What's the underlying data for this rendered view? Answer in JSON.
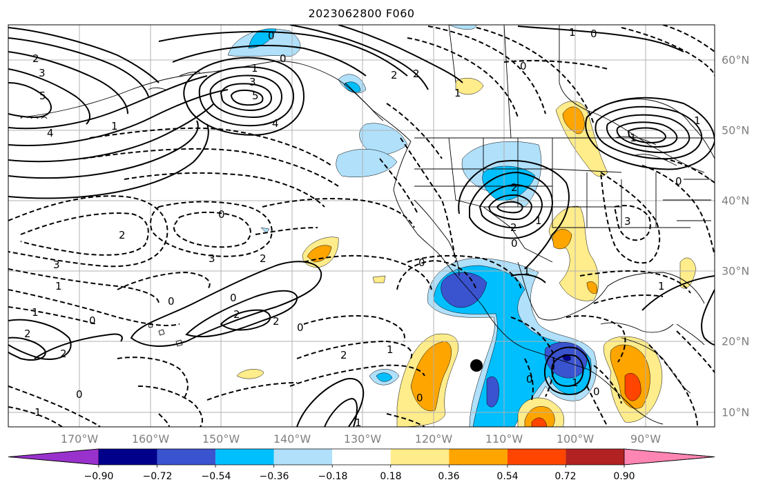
{
  "title": "2023062800 F060",
  "longitude_labels": [
    "170°W",
    "160°W",
    "150°W",
    "140°W",
    "130°W",
    "120°W",
    "110°W",
    "100°W",
    "90°W"
  ],
  "latitude_labels": [
    "60°N",
    "50°N",
    "40°N",
    "30°N",
    "20°N",
    "10°N"
  ],
  "colorbar": {
    "ticks": [
      "−0.90",
      "−0.72",
      "−0.54",
      "−0.36",
      "−0.18",
      "0.18",
      "0.36",
      "0.54",
      "0.72",
      "0.90"
    ],
    "colors": [
      "#9932cc",
      "#00008b",
      "#3a53cf",
      "#00bfff",
      "#b0e0fa",
      "#ffffff",
      "#ffec8b",
      "#ffa500",
      "#ff4500",
      "#b22222",
      "#ff85b3"
    ]
  },
  "contour_labels": [
    "2",
    "3",
    "5",
    "4",
    "1",
    "0",
    "0",
    "0",
    "2",
    "2",
    "0",
    "1",
    "3",
    "5",
    "4",
    "1",
    "2",
    "2",
    "1",
    "0",
    "0",
    "0",
    "2",
    "3",
    "1",
    "0",
    "2",
    "3",
    "2",
    "0",
    "2",
    "1",
    "0",
    "2",
    "1",
    "2",
    "0",
    "1",
    "1",
    "0",
    "0",
    "1",
    "1",
    "2",
    "1",
    "0",
    "0",
    "0",
    "1",
    "3",
    "1",
    "1"
  ],
  "marker": "black dot"
}
